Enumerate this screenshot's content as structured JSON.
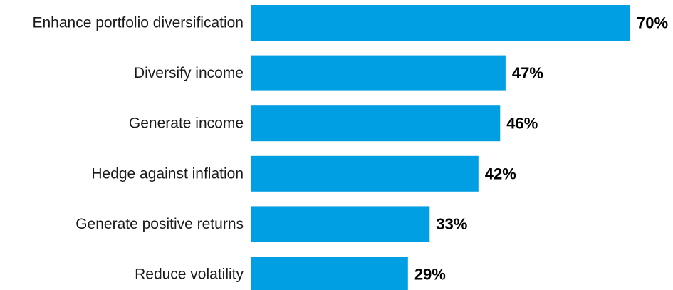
{
  "chart_data": {
    "type": "bar",
    "orientation": "horizontal",
    "categories": [
      "Enhance portfolio diversification",
      "Diversify income",
      "Generate income",
      "Hedge against inflation",
      "Generate positive returns",
      "Reduce volatility"
    ],
    "values": [
      70,
      47,
      46,
      42,
      33,
      29
    ],
    "value_labels": [
      "70%",
      "47%",
      "46%",
      "42%",
      "33%",
      "29%"
    ],
    "unit": "%",
    "title": "",
    "xlabel": "",
    "ylabel": "",
    "xlim": [
      0,
      70
    ],
    "grid": false,
    "legend": "none",
    "colors": {
      "bar": "#009fe3",
      "value_text": "#000000",
      "category_text": "#1a1a1a"
    }
  }
}
